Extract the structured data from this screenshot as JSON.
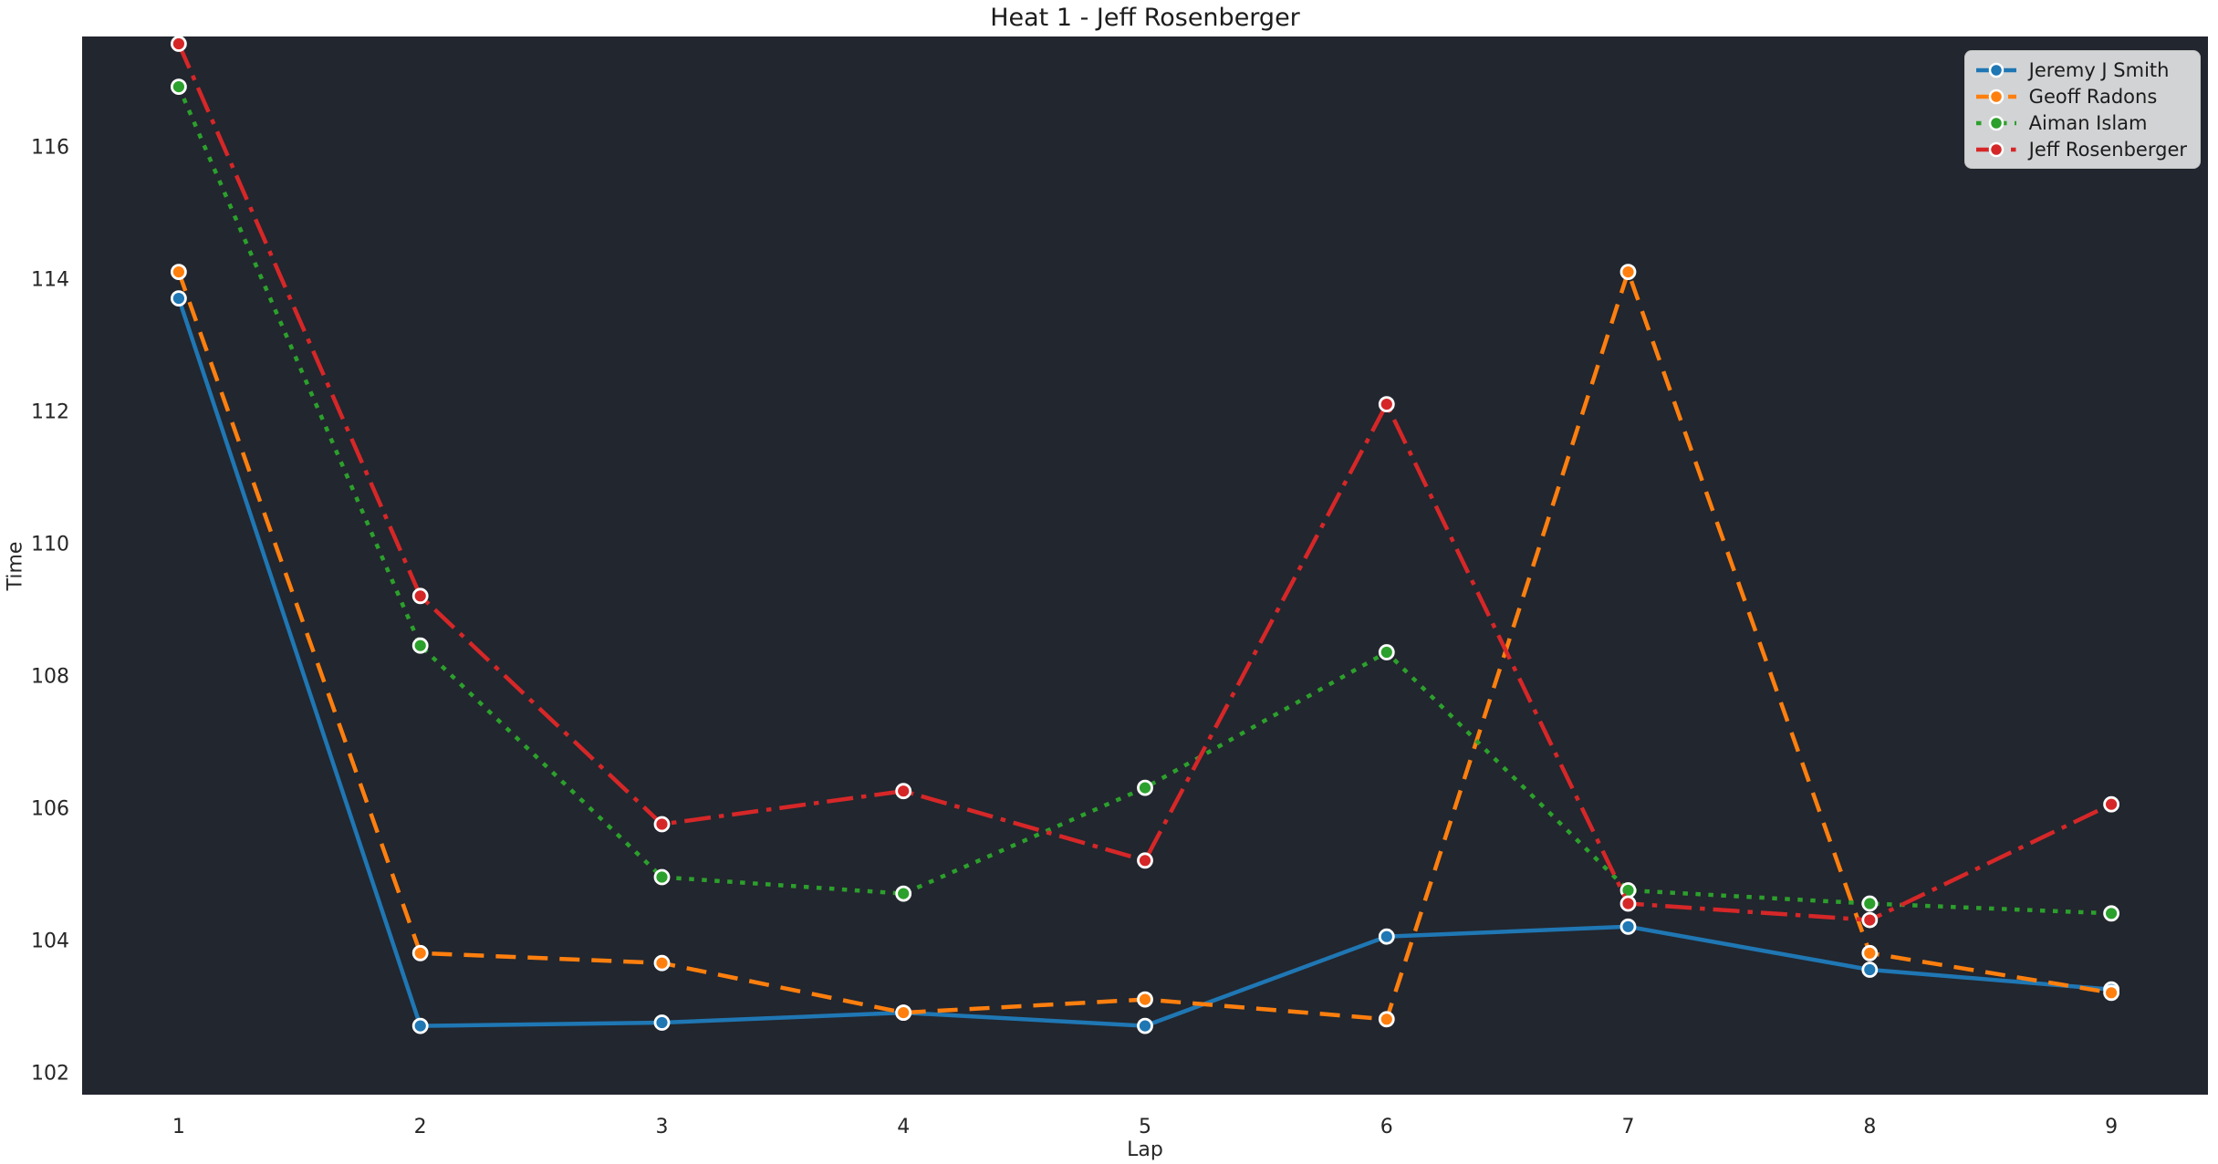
{
  "figure": {
    "title": "Heat 1 - Jeff Rosenberger"
  },
  "chart_data": {
    "type": "line",
    "title": "Heat 1 - Jeff Rosenberger",
    "xlabel": "Lap",
    "ylabel": "Time",
    "x": [
      1,
      2,
      3,
      4,
      5,
      6,
      7,
      8,
      9
    ],
    "xticks": [
      "1",
      "2",
      "3",
      "4",
      "5",
      "6",
      "7",
      "8",
      "9"
    ],
    "yticks": [
      102,
      104,
      106,
      108,
      110,
      112,
      114,
      116
    ],
    "xlim": [
      0.6,
      9.4
    ],
    "ylim": [
      101.66,
      117.66
    ],
    "grid": false,
    "axes_background": "#22262e",
    "figure_background": "#ffffff",
    "marker_edge_color": "#ffffff",
    "legend_position": "upper right",
    "series": [
      {
        "name": "Jeremy J Smith",
        "color": "#1f77b4",
        "linestyle": "solid",
        "marker": "o",
        "values": [
          113.7,
          102.7,
          102.75,
          102.9,
          102.7,
          104.05,
          104.2,
          103.55,
          103.25
        ]
      },
      {
        "name": "Geoff Radons",
        "color": "#ff7f0e",
        "linestyle": "dashed",
        "marker": "o",
        "values": [
          114.1,
          103.8,
          103.65,
          102.9,
          103.1,
          102.8,
          114.1,
          103.8,
          103.2
        ]
      },
      {
        "name": "Aiman Islam",
        "color": "#2ca02c",
        "linestyle": "dotted",
        "marker": "o",
        "values": [
          116.9,
          108.45,
          104.95,
          104.7,
          106.3,
          108.35,
          104.75,
          104.55,
          104.4
        ]
      },
      {
        "name": "Jeff Rosenberger",
        "color": "#d62728",
        "linestyle": "dashdot",
        "marker": "o",
        "values": [
          117.55,
          109.2,
          105.75,
          106.25,
          105.2,
          112.1,
          104.55,
          104.3,
          106.05
        ]
      }
    ]
  }
}
